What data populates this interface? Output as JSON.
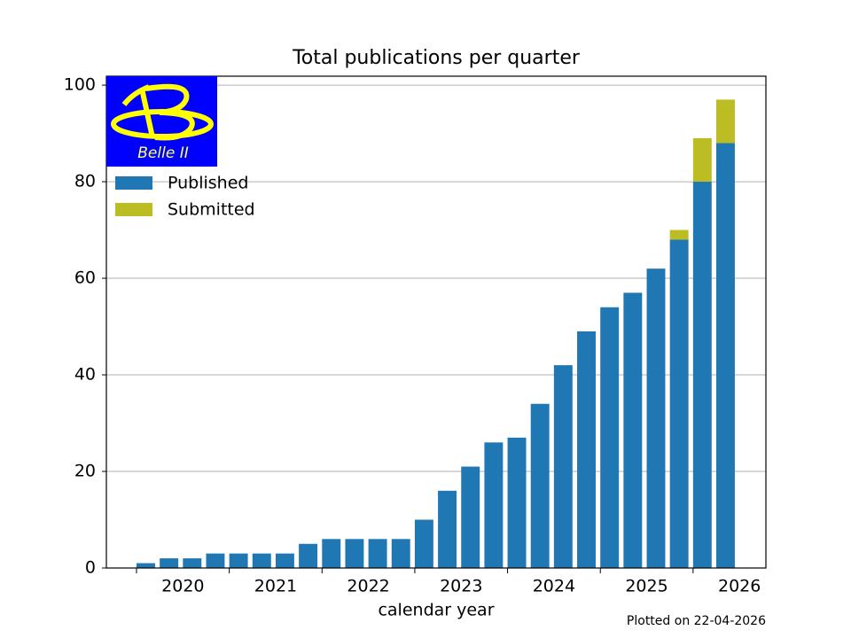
{
  "chart_data": {
    "type": "stacked_bar",
    "title": "Total publications per quarter",
    "xlabel": "calendar year",
    "footnote": "Plotted on 22-04-2026",
    "logo_text": "Belle II",
    "x": [
      2019.6,
      2019.85,
      2020.1,
      2020.35,
      2020.6,
      2020.85,
      2021.1,
      2021.35,
      2021.6,
      2021.85,
      2022.1,
      2022.35,
      2022.6,
      2022.85,
      2023.1,
      2023.35,
      2023.6,
      2023.85,
      2024.1,
      2024.35,
      2024.6,
      2024.85,
      2025.1,
      2025.35,
      2025.6,
      2025.85
    ],
    "series": [
      {
        "name": "Published",
        "color": "#1f77b4",
        "values": [
          1,
          2,
          2,
          3,
          3,
          3,
          3,
          5,
          6,
          6,
          6,
          6,
          10,
          16,
          21,
          26,
          27,
          34,
          42,
          49,
          54,
          57,
          62,
          68,
          80,
          88
        ]
      },
      {
        "name": "Submitted",
        "color": "#bcbd22",
        "values": [
          0,
          0,
          0,
          0,
          0,
          0,
          0,
          0,
          0,
          0,
          0,
          0,
          0,
          0,
          0,
          0,
          0,
          0,
          0,
          0,
          0,
          0,
          0,
          2,
          9,
          9
        ]
      }
    ],
    "xlim": [
      2019.175,
      2026.285
    ],
    "xticks": [
      2020,
      2021,
      2022,
      2023,
      2024,
      2025,
      2026
    ],
    "xminorticks": [
      2019.5,
      2020.5,
      2021.5,
      2022.5,
      2023.5,
      2024.5,
      2025.5
    ],
    "ylim": [
      0,
      101.85
    ],
    "yticks": [
      0,
      20,
      40,
      60,
      80,
      100
    ],
    "grid": true,
    "legend": "upper left"
  }
}
